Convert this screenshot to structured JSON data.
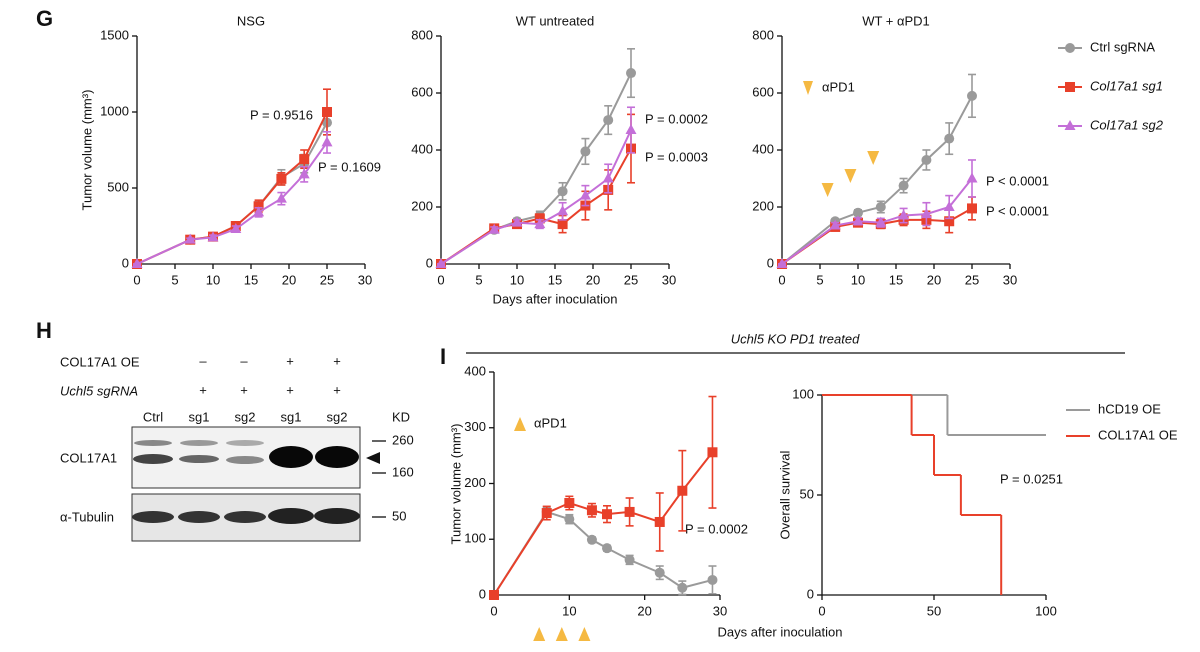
{
  "panel_labels": [
    "G",
    "H",
    "I"
  ],
  "shared_title": "Uchl5 KO PD1 treated",
  "blot": {
    "row_labels": [
      "COL17A1 OE",
      "Uchl5 sgRNA"
    ],
    "row_signs": [
      [
        "–",
        "–",
        "+",
        "+"
      ],
      [
        "+",
        "+",
        "+",
        "+"
      ]
    ],
    "lanes": [
      "Ctrl",
      "sg1",
      "sg2",
      "sg1",
      "sg2"
    ],
    "size_unit": "KD",
    "markers": [
      "260",
      "160",
      "50"
    ],
    "bands": [
      "COL17A1",
      "α-Tubulin"
    ]
  },
  "chart_data": [
    {
      "type": "line",
      "title": "NSG",
      "ylabel": "Tumor volume (mm³)",
      "x": [
        0,
        7,
        10,
        13,
        16,
        19,
        22,
        25
      ],
      "xlim": [
        0,
        30
      ],
      "xticks": [
        0,
        5,
        10,
        15,
        20,
        25,
        30
      ],
      "ylim": [
        0,
        1500
      ],
      "yticks": [
        0,
        500,
        1000,
        1500
      ],
      "series": [
        {
          "color": "#9a9a9a",
          "marker": "circle",
          "values": [
            0,
            160,
            180,
            250,
            380,
            570,
            660,
            930
          ],
          "errors": [
            0,
            10,
            15,
            20,
            30,
            50,
            60,
            80
          ]
        },
        {
          "color": "#e8402a",
          "marker": "square",
          "values": [
            0,
            160,
            180,
            250,
            380,
            560,
            690,
            1000
          ],
          "errors": [
            0,
            10,
            15,
            20,
            40,
            40,
            60,
            150
          ]
        },
        {
          "color": "#c46fd8",
          "marker": "triangle",
          "values": [
            0,
            160,
            175,
            230,
            340,
            430,
            590,
            800
          ],
          "errors": [
            0,
            10,
            15,
            20,
            30,
            40,
            50,
            70
          ]
        }
      ],
      "annotations": [
        "P = 0.9516",
        "P = 0.1609"
      ]
    },
    {
      "type": "line",
      "title": "WT untreated",
      "xlabel": "Days after inoculation",
      "x": [
        0,
        7,
        10,
        13,
        16,
        19,
        22,
        25
      ],
      "xlim": [
        0,
        30
      ],
      "xticks": [
        0,
        5,
        10,
        15,
        20,
        25,
        30
      ],
      "ylim": [
        0,
        800
      ],
      "yticks": [
        0,
        200,
        400,
        600,
        800
      ],
      "series": [
        {
          "color": "#9a9a9a",
          "marker": "circle",
          "values": [
            0,
            120,
            150,
            170,
            255,
            395,
            505,
            670
          ],
          "errors": [
            0,
            10,
            10,
            15,
            30,
            45,
            50,
            85
          ]
        },
        {
          "color": "#e8402a",
          "marker": "square",
          "values": [
            0,
            125,
            140,
            160,
            140,
            205,
            260,
            405
          ],
          "errors": [
            0,
            10,
            10,
            15,
            30,
            50,
            70,
            120
          ]
        },
        {
          "color": "#c46fd8",
          "marker": "triangle",
          "values": [
            0,
            120,
            145,
            140,
            185,
            240,
            300,
            470
          ],
          "errors": [
            0,
            10,
            10,
            15,
            30,
            35,
            50,
            80
          ]
        }
      ],
      "annotations": [
        "P = 0.0002",
        "P = 0.0003"
      ]
    },
    {
      "type": "line",
      "title": "WT + αPD1",
      "legend": "right",
      "x": [
        0,
        7,
        10,
        13,
        16,
        19,
        22,
        25
      ],
      "xlim": [
        0,
        30
      ],
      "xticks": [
        0,
        5,
        10,
        15,
        20,
        25,
        30
      ],
      "ylim": [
        0,
        800
      ],
      "yticks": [
        0,
        200,
        400,
        600,
        800
      ],
      "series": [
        {
          "name": "Ctrl sgRNA",
          "color": "#9a9a9a",
          "marker": "circle",
          "values": [
            0,
            150,
            180,
            200,
            275,
            365,
            440,
            590
          ],
          "errors": [
            0,
            8,
            10,
            20,
            25,
            35,
            55,
            75
          ]
        },
        {
          "name": "Col17a1 sg1",
          "color": "#e8402a",
          "marker": "square",
          "values": [
            0,
            130,
            145,
            140,
            155,
            155,
            150,
            195
          ],
          "errors": [
            0,
            10,
            12,
            15,
            20,
            30,
            40,
            40
          ]
        },
        {
          "name": "Col17a1 sg2",
          "color": "#c46fd8",
          "marker": "triangle",
          "values": [
            0,
            135,
            150,
            145,
            170,
            175,
            200,
            300
          ],
          "errors": [
            0,
            10,
            12,
            15,
            25,
            40,
            40,
            65
          ]
        }
      ],
      "treatment_days": [
        6,
        9,
        12
      ],
      "treatment_label": "αPD1",
      "treatment_color": "#f5b942",
      "annotations": [
        "P < 0.0001",
        "P < 0.0001"
      ]
    },
    {
      "type": "line",
      "ylabel": "Tumor volume (mm³)",
      "xlabel": "Days after inoculation",
      "x": [
        0,
        7,
        10,
        13,
        15,
        18,
        22,
        25,
        29
      ],
      "xlim": [
        0,
        30
      ],
      "xticks": [
        0,
        10,
        20,
        30
      ],
      "ylim": [
        0,
        400
      ],
      "yticks": [
        0,
        100,
        200,
        300,
        400
      ],
      "series": [
        {
          "color": "#9a9a9a",
          "marker": "circle",
          "values": [
            0,
            149,
            136,
            99,
            84,
            63,
            40,
            13,
            27
          ],
          "errors": [
            0,
            8,
            8,
            5,
            5,
            8,
            12,
            12,
            25
          ]
        },
        {
          "color": "#e8402a",
          "marker": "square",
          "values": [
            0,
            147,
            165,
            152,
            145,
            149,
            131,
            187,
            256
          ],
          "errors": [
            0,
            12,
            12,
            12,
            15,
            25,
            52,
            72,
            100
          ]
        }
      ],
      "treatment_days": [
        6,
        9,
        12
      ],
      "treatment_label": "αPD1",
      "treatment_color": "#f5b942",
      "annotations": [
        "P = 0.0002"
      ]
    },
    {
      "type": "step",
      "ylabel": "Overall survival",
      "legend": "right",
      "xlim": [
        0,
        100
      ],
      "xticks": [
        0,
        50,
        100
      ],
      "ylim": [
        0,
        100
      ],
      "yticks": [
        0,
        50,
        100
      ],
      "series": [
        {
          "name": "hCD19 OE",
          "color": "#9a9a9a",
          "x": [
            0,
            56,
            100
          ],
          "values": [
            100,
            80,
            80
          ]
        },
        {
          "name": "COL17A1 OE",
          "color": "#e8402a",
          "x": [
            0,
            40,
            50,
            62,
            80
          ],
          "values": [
            100,
            80,
            60,
            40,
            0
          ]
        }
      ],
      "annotations": [
        "P = 0.0251"
      ]
    }
  ]
}
